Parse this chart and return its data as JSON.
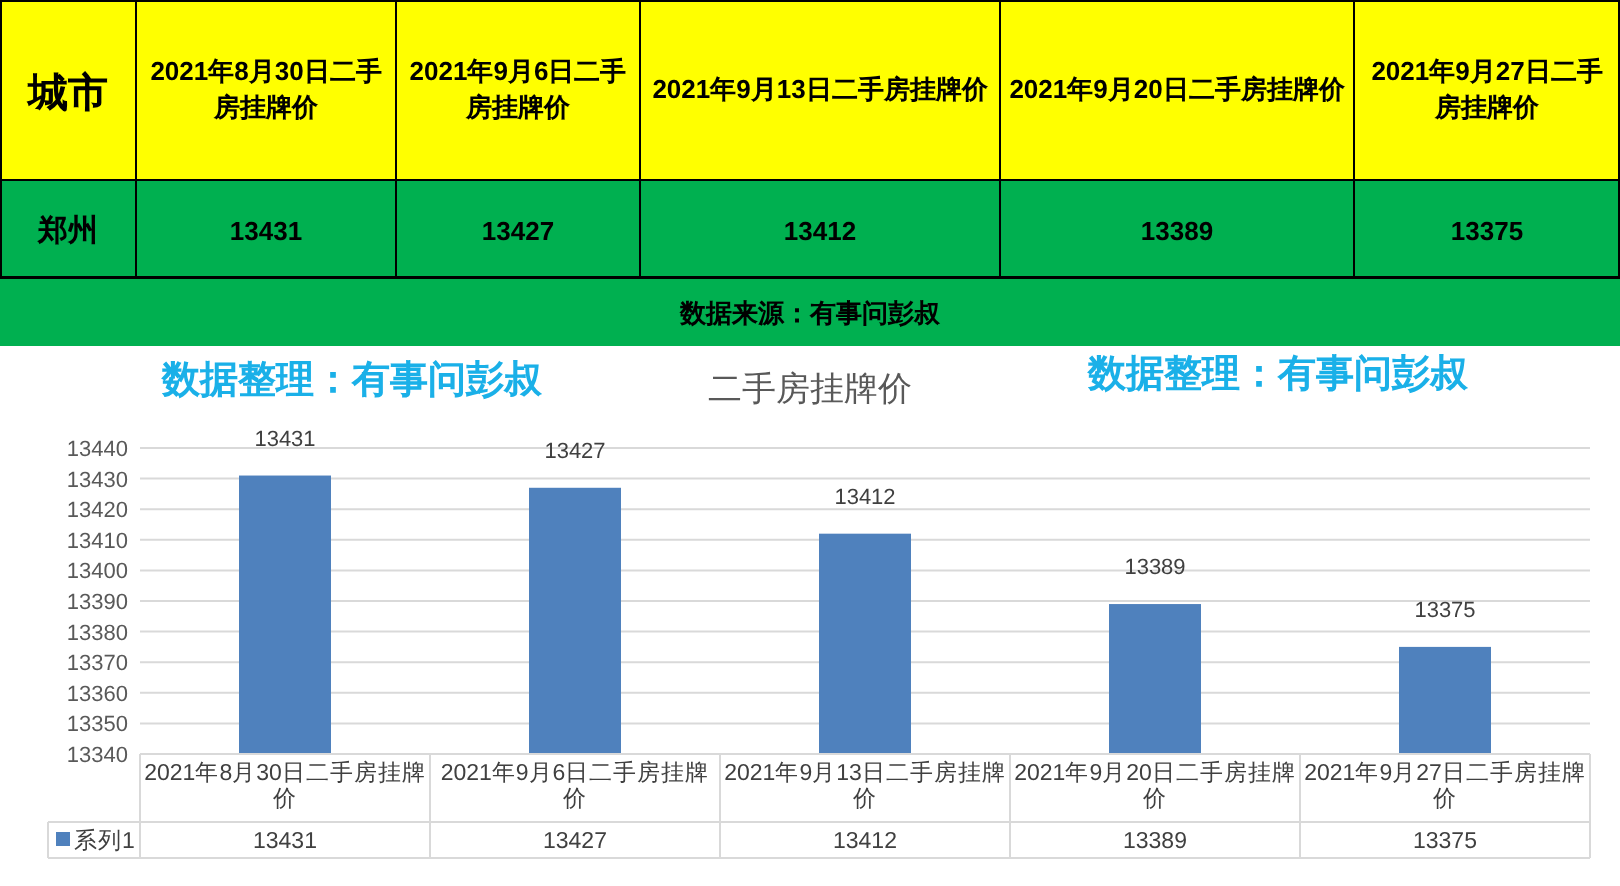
{
  "chart_data": {
    "type": "bar",
    "title": "二手房挂牌价",
    "categories": [
      "2021年8月30日二手房挂牌价",
      "2021年9月6日二手房挂牌价",
      "2021年9月13日二手房挂牌价",
      "2021年9月20日二手房挂牌价",
      "2021年9月27日二手房挂牌价"
    ],
    "series": [
      {
        "name": "系列1",
        "color": "#4f81bd",
        "values": [
          13431,
          13427,
          13412,
          13389,
          13375
        ],
        "value_labels": [
          "13431",
          "13427",
          "13412",
          "13389",
          "13375"
        ]
      }
    ],
    "ylim": [
      13340,
      13440
    ],
    "yticks": [
      13340,
      13350,
      13360,
      13370,
      13380,
      13390,
      13400,
      13410,
      13420,
      13430,
      13440
    ],
    "grid": "y",
    "legend": "bottom",
    "annotations": [
      "城市",
      "郑州",
      "数据来源：有事问彭叔",
      "数据整理：有事问彭叔",
      "数据整理：有事问彭叔"
    ]
  }
}
